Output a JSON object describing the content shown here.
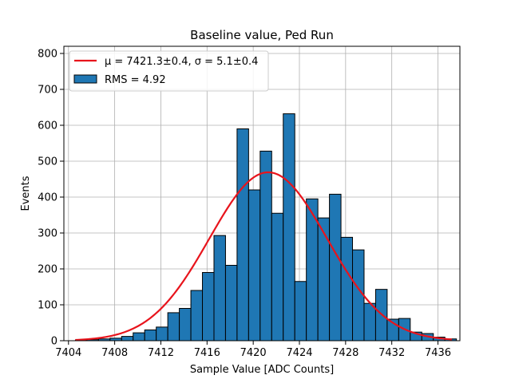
{
  "chart_data": {
    "type": "bar",
    "title": "Baseline value, Ped Run",
    "xlabel": "Sample Value [ADC Counts]",
    "ylabel": "Events",
    "xlim": [
      7403.6,
      7437.9
    ],
    "ylim": [
      0,
      820
    ],
    "xticks": [
      7404,
      7408,
      7412,
      7416,
      7420,
      7424,
      7428,
      7432,
      7436
    ],
    "yticks": [
      0,
      100,
      200,
      300,
      400,
      500,
      600,
      700,
      800
    ],
    "grid": true,
    "legend_position": "top-left",
    "histogram": {
      "bin_start": 7404.6,
      "bin_width": 1.0,
      "values": [
        2,
        3,
        5,
        7,
        12,
        22,
        30,
        38,
        78,
        90,
        140,
        190,
        293,
        210,
        590,
        420,
        528,
        355,
        632,
        165,
        395,
        342,
        408,
        288,
        253,
        104,
        143,
        60,
        62,
        24,
        20,
        10,
        5
      ],
      "color": "#1f77b4",
      "edgecolor": "#000000",
      "legend_label": "RMS = 4.92"
    },
    "fit": {
      "type": "gaussian",
      "mu": 7421.3,
      "sigma": 5.1,
      "amplitude": 469,
      "x_range": [
        7404.6,
        7437.2
      ],
      "color": "#e8141c",
      "legend_label_mu": "μ = 7421.3±0.4",
      "legend_label_sigma": "σ = 5.1±0.4"
    }
  }
}
